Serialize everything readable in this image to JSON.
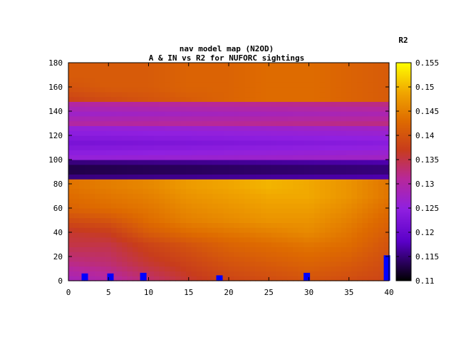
{
  "chart_data": {
    "type": "heatmap",
    "title": "nav model map (N2OD)",
    "subtitle": "A & IN vs R2 for NUFORC sightings",
    "xlabel": "",
    "ylabel": "",
    "xlim": [
      0,
      40
    ],
    "ylim": [
      0,
      180
    ],
    "x_ticks": [
      "0",
      "5",
      "10",
      "15",
      "20",
      "25",
      "30",
      "35",
      "40"
    ],
    "y_ticks": [
      "0",
      "20",
      "40",
      "60",
      "80",
      "100",
      "120",
      "140",
      "160",
      "180"
    ],
    "colorbar": {
      "label": "R2",
      "range": [
        0.11,
        0.155
      ],
      "ticks": [
        "0.11",
        "0.115",
        "0.12",
        "0.125",
        "0.13",
        "0.135",
        "0.14",
        "0.145",
        "0.15",
        "0.155"
      ],
      "palette": [
        "#000000",
        "#7a00ff",
        "#b020b0",
        "#c03820",
        "#e07000",
        "#f0b000",
        "#ffff00"
      ]
    },
    "r2_by_a": {
      "a": [
        0,
        15,
        30,
        40,
        50,
        60,
        70,
        80,
        90,
        100,
        110,
        120,
        130,
        140,
        150,
        160,
        170,
        180
      ],
      "rows": [
        [
          0.128,
          0.132,
          0.135,
          0.136,
          0.139,
          0.142,
          0.143,
          0.144,
          0.143,
          0.142,
          0.141,
          0.14,
          0.139,
          0.139,
          0.138,
          0.14,
          0.141,
          0.141
        ],
        [
          0.13,
          0.133,
          0.135,
          0.137,
          0.14,
          0.143,
          0.144,
          0.145,
          0.144,
          0.143,
          0.142,
          0.141,
          0.14,
          0.14,
          0.139,
          0.141,
          0.141,
          0.141
        ],
        [
          0.133,
          0.136,
          0.138,
          0.141,
          0.143,
          0.144,
          0.145,
          0.146,
          0.145,
          0.144,
          0.143,
          0.142,
          0.141,
          0.141,
          0.14,
          0.141,
          0.141,
          0.141
        ],
        [
          0.136,
          0.138,
          0.14,
          0.143,
          0.145,
          0.146,
          0.147,
          0.148,
          0.147,
          0.146,
          0.145,
          0.144,
          0.143,
          0.142,
          0.141,
          0.142,
          0.142,
          0.142
        ],
        [
          0.138,
          0.14,
          0.142,
          0.144,
          0.146,
          0.147,
          0.148,
          0.149,
          0.148,
          0.147,
          0.146,
          0.145,
          0.144,
          0.143,
          0.142,
          0.142,
          0.142,
          0.142
        ],
        [
          0.139,
          0.141,
          0.143,
          0.145,
          0.147,
          0.148,
          0.149,
          0.15,
          0.149,
          0.148,
          0.147,
          0.146,
          0.145,
          0.144,
          0.143,
          0.143,
          0.143,
          0.143
        ],
        [
          0.14,
          0.142,
          0.144,
          0.146,
          0.147,
          0.148,
          0.149,
          0.149,
          0.149,
          0.148,
          0.147,
          0.146,
          0.145,
          0.144,
          0.143,
          0.143,
          0.143,
          0.143
        ],
        [
          0.139,
          0.141,
          0.143,
          0.144,
          0.145,
          0.146,
          0.147,
          0.147,
          0.147,
          0.146,
          0.146,
          0.145,
          0.144,
          0.143,
          0.142,
          0.142,
          0.142,
          0.142
        ],
        [
          0.138,
          0.139,
          0.14,
          0.141,
          0.142,
          0.143,
          0.144,
          0.144,
          0.144,
          0.144,
          0.144,
          0.143,
          0.142,
          0.141,
          0.141,
          0.141,
          0.141,
          0.141
        ]
      ],
      "row_notes": "rows indexed by IN at x = 0, 5, 10, 15, 20, 25, 30, 35, 40"
    },
    "rows_x": [
      0,
      5,
      10,
      15,
      20,
      25,
      30,
      35,
      40
    ],
    "band_overrides": [
      {
        "a_from": 84,
        "a_to": 100,
        "r2": 0.112
      },
      {
        "a_from": 100,
        "a_to": 128,
        "r2": 0.122
      },
      {
        "a_from": 128,
        "a_to": 148,
        "r2": 0.127
      }
    ],
    "markers": [
      {
        "x": 2.0,
        "y": 3,
        "height": 6
      },
      {
        "x": 5.2,
        "y": 3,
        "height": 6
      },
      {
        "x": 9.3,
        "y": 3,
        "height": 7
      },
      {
        "x": 18.8,
        "y": 2,
        "height": 5
      },
      {
        "x": 29.7,
        "y": 3,
        "height": 7
      },
      {
        "x": 39.7,
        "y": 10,
        "height": 22
      }
    ],
    "marker_color": "#0000ff"
  }
}
